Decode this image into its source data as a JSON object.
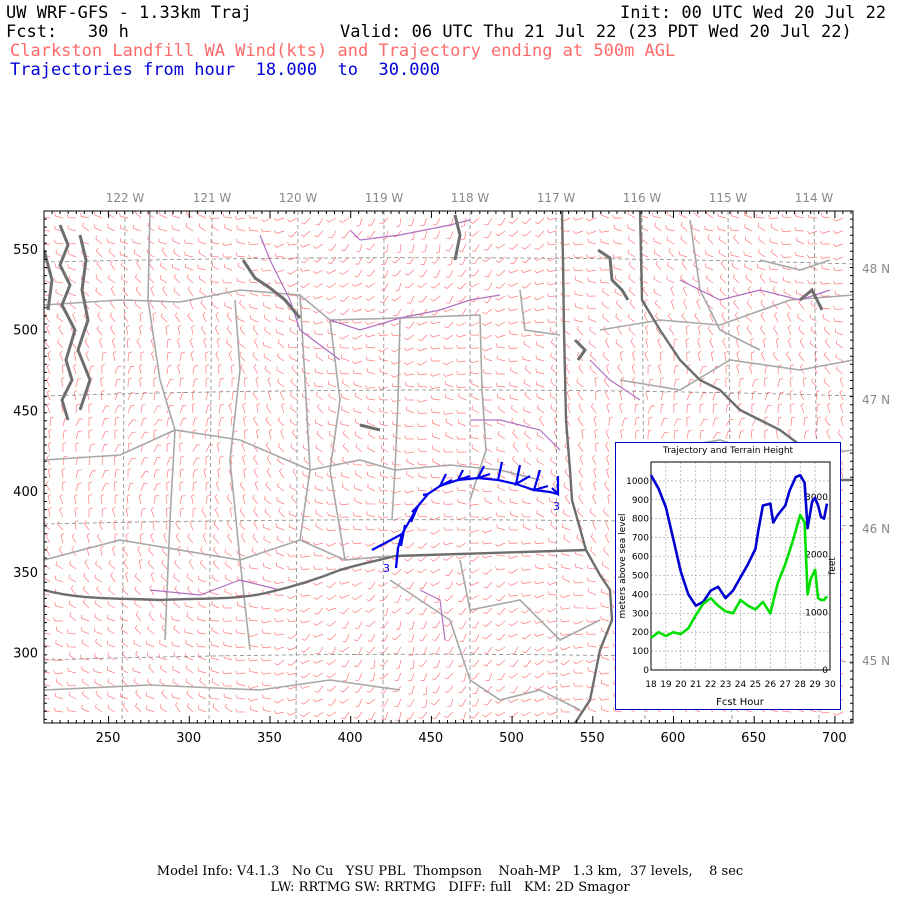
{
  "header": {
    "title": "UW WRF-GFS - 1.33km Traj",
    "init": "Init: 00 UTC Wed 20 Jul 22",
    "fcst_label": "Fcst:",
    "fcst_value": "30 h",
    "valid": "Valid: 06 UTC Thu 21 Jul 22 (23 PDT Wed 20 Jul 22)",
    "subtitle": "Clarkston Landfill WA Wind(kts) and Trajectory ending at 500m AGL",
    "traj_prefix": "Trajectories from hour",
    "traj_from": "18.000",
    "traj_to_word": "to",
    "traj_to": "30.000"
  },
  "map": {
    "lon_labels": [
      "122 W",
      "121 W",
      "120 W",
      "119 W",
      "118 W",
      "117 W",
      "116 W",
      "115 W",
      "114 W"
    ],
    "lat_labels": [
      "48 N",
      "47 N",
      "46 N",
      "45 N"
    ],
    "x_ticks": [
      "250",
      "300",
      "350",
      "400",
      "450",
      "500",
      "550",
      "600",
      "650",
      "700"
    ],
    "y_ticks": [
      "550",
      "500",
      "450",
      "400",
      "350",
      "300"
    ],
    "trajectory_hour_start": "3",
    "trajectory_hour_end": "3",
    "colors": {
      "barbs": "#ff7a7a",
      "trajectory": "#0000ee",
      "counties": "#a8a8a8",
      "states": "#707070",
      "rivers": "#b070c0"
    }
  },
  "inset": {
    "title": "Trajectory and Terrain Height",
    "ylabel_left": "meters above sea level",
    "ylabel_right": "feet",
    "xlabel": "Fcst Hour",
    "y_ticks_m": [
      "1000",
      "900",
      "800",
      "700",
      "600",
      "500",
      "400",
      "300",
      "200",
      "100",
      "0"
    ],
    "y_ticks_ft": [
      "3000",
      "2000",
      "1000",
      "0"
    ],
    "x_ticks": [
      "18",
      "19",
      "20",
      "21",
      "22",
      "23",
      "24",
      "25",
      "26",
      "27",
      "28",
      "29",
      "30"
    ]
  },
  "chart_data": {
    "type": "line",
    "title": "Trajectory and Terrain Height",
    "xlabel": "Fcst Hour",
    "ylabel": "meters above sea level",
    "xlim": [
      18,
      30
    ],
    "ylim": [
      0,
      1100
    ],
    "series": [
      {
        "color": "#0000d0",
        "x": [
          18,
          18.5,
          19,
          19.5,
          20,
          20.5,
          21,
          21.5,
          22,
          22.5,
          23,
          23.5,
          24,
          24.5,
          25,
          25.2,
          25.5,
          26,
          26.2,
          26.5,
          27,
          27.3,
          27.7,
          28,
          28.3,
          28.5,
          28.8,
          29,
          29.2,
          29.4,
          29.6,
          29.8
        ],
        "values": [
          1030,
          960,
          860,
          690,
          520,
          400,
          340,
          360,
          420,
          440,
          380,
          420,
          490,
          560,
          640,
          740,
          870,
          880,
          780,
          820,
          870,
          950,
          1020,
          1030,
          990,
          750,
          890,
          910,
          870,
          810,
          800,
          880
        ]
      },
      {
        "color": "#00e000",
        "x": [
          18,
          18.5,
          19,
          19.5,
          20,
          20.5,
          21,
          21.5,
          22,
          22.5,
          23,
          23.5,
          24,
          24.5,
          25,
          25.5,
          26,
          26.5,
          27,
          27.5,
          28,
          28.3,
          28.5,
          28.7,
          29,
          29.2,
          29.4,
          29.6,
          29.8
        ],
        "values": [
          170,
          200,
          180,
          200,
          190,
          220,
          290,
          350,
          380,
          340,
          310,
          300,
          370,
          340,
          320,
          360,
          300,
          460,
          560,
          680,
          820,
          780,
          400,
          480,
          530,
          380,
          370,
          370,
          390
        ]
      }
    ]
  },
  "footer": {
    "line1": "Model Info: V4.1.3   No Cu   YSU PBL  Thompson    Noah-MP   1.3 km,  37 levels,    8 sec",
    "line2": "LW: RRTMG SW: RRTMG   DIFF: full   KM: 2D Smagor"
  }
}
